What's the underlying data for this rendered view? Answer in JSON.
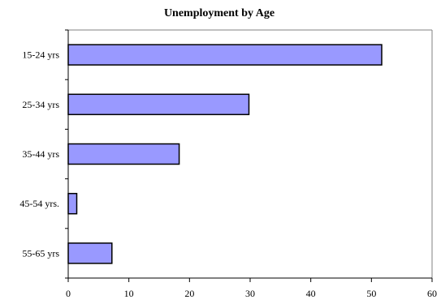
{
  "chart_data": {
    "type": "bar",
    "orientation": "horizontal",
    "title": "Unemployment by Age",
    "xlabel": "",
    "ylabel": "",
    "categories": [
      "15-24 yrs",
      "25-34 yrs",
      "35-44 yrs",
      "45-54 yrs.",
      "55-65 yrs"
    ],
    "values": [
      51.7,
      29.8,
      18.3,
      1.4,
      7.2
    ],
    "xlim": [
      0,
      60
    ],
    "xticks": [
      0,
      10,
      20,
      30,
      40,
      50,
      60
    ],
    "grid": false,
    "legend": "none",
    "colors": {
      "bar_fill": "#9999ff",
      "bar_stroke": "#000000",
      "axis": "#000000",
      "frame": "#808080"
    }
  }
}
